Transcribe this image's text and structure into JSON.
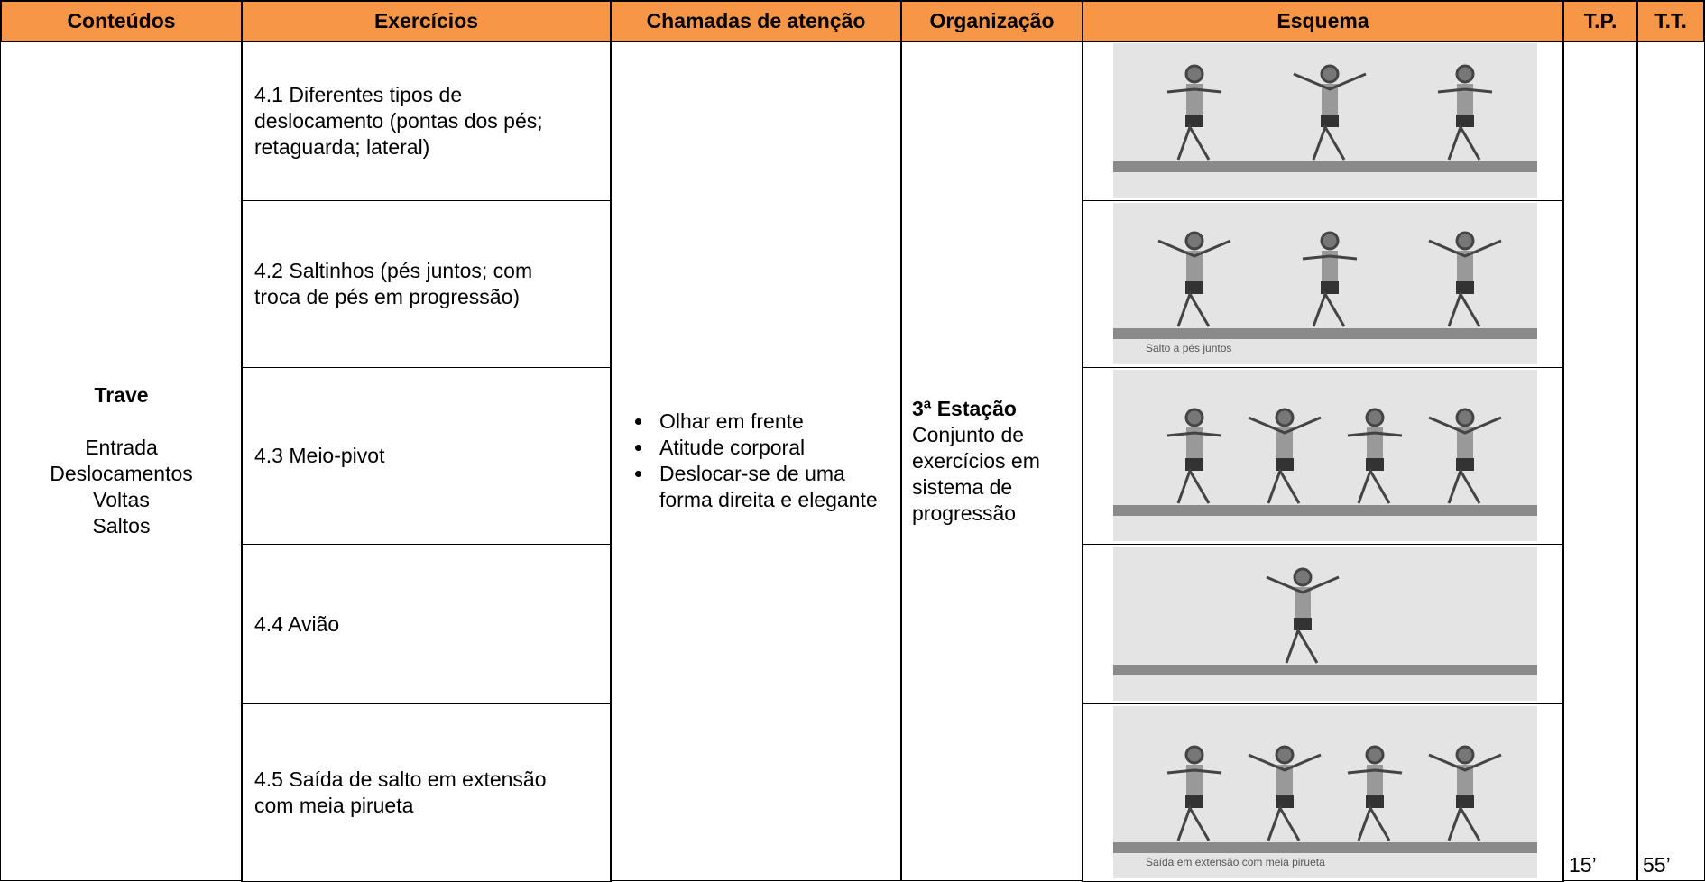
{
  "table": {
    "headers": [
      "Conteúdos",
      "Exercícios",
      "Chamadas de atenção",
      "Organização",
      "Esquema",
      "T.P.",
      "T.T."
    ],
    "content": {
      "title": "Trave",
      "items": [
        "Entrada",
        "Deslocamentos",
        "Voltas",
        "Saltos"
      ]
    },
    "exercises": [
      "4.1 Diferentes tipos de deslocamento (pontas dos pés; retaguarda; lateral)",
      "4.2 Saltinhos (pés juntos; com troca de pés em progressão)",
      "4.3 Meio-pivot",
      "4.4 Avião",
      "4.5 Saída de salto em extensão com meia pirueta"
    ],
    "attention": [
      "Olhar em frente",
      "Atitude corporal",
      "Deslocar-se de uma forma direita e elegante"
    ],
    "organization": {
      "title": "3ª Estação",
      "text": "Conjunto de exercícios em sistema de progressão"
    },
    "sketch_captions": [
      "Salto a pés juntos",
      "Saída em extensão com meia pirueta"
    ],
    "tp": "15’",
    "tt": "55’"
  }
}
